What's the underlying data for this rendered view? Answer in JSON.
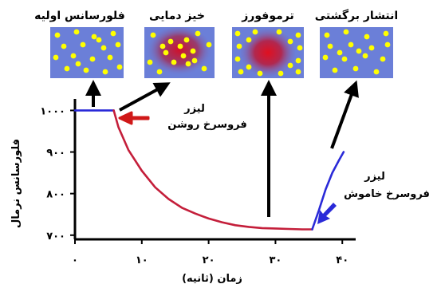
{
  "panels": [
    {
      "label": "فلورسانس اولیه",
      "state": "initial"
    },
    {
      "label": "خیز دمایی",
      "state": "heating"
    },
    {
      "label": "ترموفورز",
      "state": "thermophoresis"
    },
    {
      "label": "انتشار برگشتی",
      "state": "back-diffusion"
    }
  ],
  "annotations": {
    "laser_on": [
      "لیزر",
      "فروسرخ روشن"
    ],
    "laser_off": [
      "لیزر",
      "فروسرخ خاموش"
    ]
  },
  "colors": {
    "panel_bg": "#6b7fd8",
    "particle": "#ffff00",
    "heat": "#d0102a",
    "curve_blue": "#2a2ad8",
    "curve_red": "#c41e3a",
    "laser_on_arrow": "#d01818",
    "laser_off_arrow": "#2a2ad8"
  },
  "chart_data": {
    "type": "line",
    "title": "",
    "xlabel": "زمان (ثانیه)",
    "ylabel": "فلورسانس نرمال",
    "xlim": [
      0,
      42
    ],
    "ylim": [
      690,
      1020
    ],
    "xticks": [
      0,
      10,
      20,
      30,
      40
    ],
    "xtick_labels": [
      "۰",
      "۱۰",
      "۲۰",
      "۳۰",
      "۴۰"
    ],
    "yticks": [
      700,
      800,
      900,
      1000
    ],
    "ytick_labels": [
      "۷۰۰",
      "۸۰۰",
      "۹۰۰",
      "۱۰۰۰"
    ],
    "series": [
      {
        "color": "#2a2ad8",
        "x": [
          0,
          2,
          4,
          5.8
        ],
        "y": [
          1000,
          1000,
          1000,
          1000
        ]
      },
      {
        "color": "#c41e3a",
        "x": [
          5.8,
          6.5,
          8,
          10,
          12,
          14,
          16,
          18,
          20,
          22,
          24,
          26,
          28,
          30,
          32,
          34,
          35.5
        ],
        "y": [
          1000,
          960,
          905,
          855,
          815,
          787,
          766,
          752,
          740,
          731,
          724,
          720,
          717,
          716,
          715,
          714,
          714
        ]
      },
      {
        "color": "#2a2ad8",
        "x": [
          35.5,
          36.5,
          37.5,
          38.5,
          39.5,
          40.2
        ],
        "y": [
          714,
          760,
          810,
          850,
          880,
          900
        ]
      }
    ]
  }
}
